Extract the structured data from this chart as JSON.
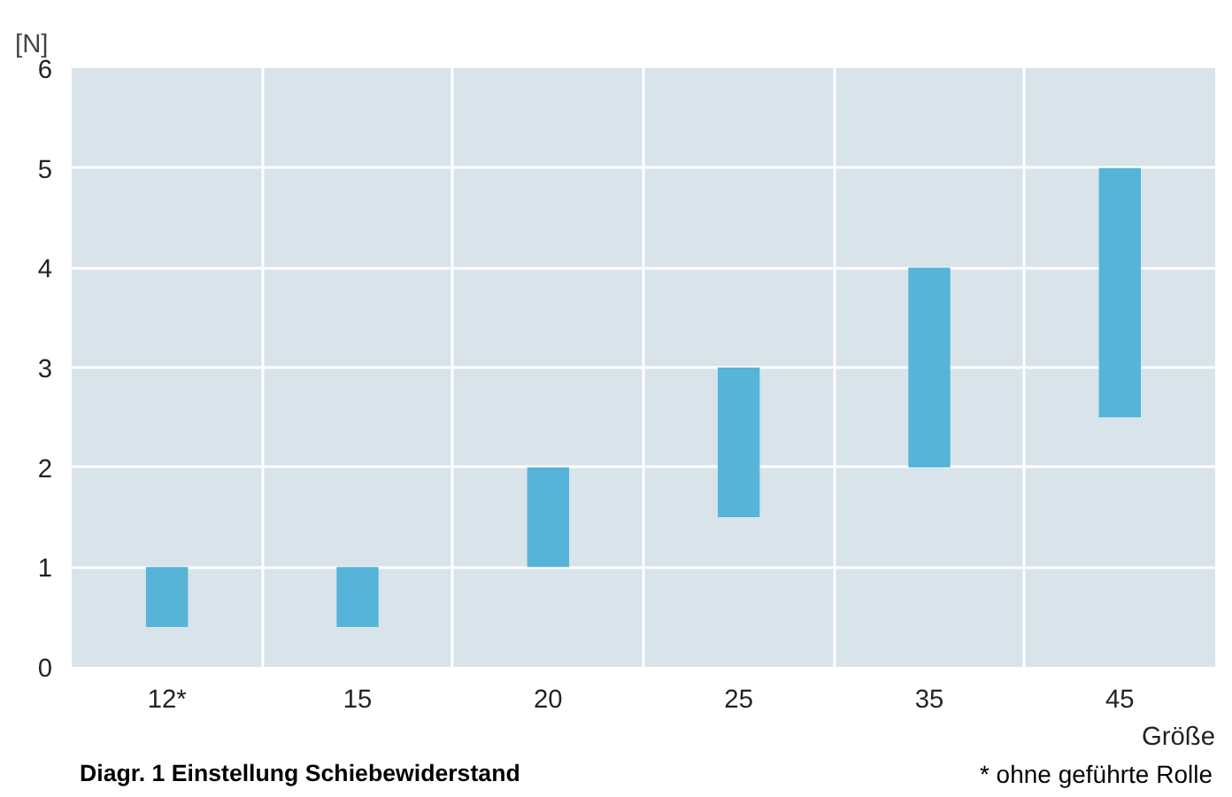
{
  "chart_data": {
    "type": "bar",
    "categories": [
      "12*",
      "15",
      "20",
      "25",
      "35",
      "45"
    ],
    "values": [
      0.6,
      0.6,
      1.0,
      1.5,
      2.0,
      2.5
    ],
    "base": [
      0.4,
      0.4,
      1.0,
      1.5,
      2.0,
      2.5
    ],
    "color": "#55b4d8",
    "ylim": [
      0,
      6
    ],
    "yticks": [
      0,
      1,
      2,
      3,
      4,
      5,
      6
    ],
    "ylabel": "[N]",
    "xlabel": "Größe",
    "grid": true,
    "annotations": [
      "Diagr. 1 Einstellung Schiebewiderstand",
      "* ohne geführte Rolle"
    ]
  }
}
